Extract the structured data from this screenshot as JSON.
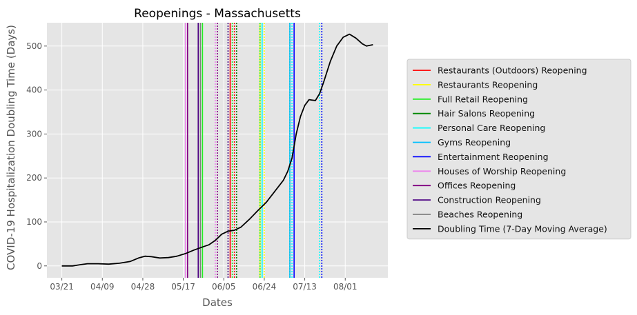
{
  "chart_data": {
    "type": "line",
    "title": "Reopenings - Massachusetts",
    "xlabel": "Dates",
    "ylabel": "COVID-19 Hospitalization Doubling Time (Days)",
    "x_tick_labels": [
      "03/21",
      "04/09",
      "04/28",
      "05/17",
      "06/05",
      "06/24",
      "07/13",
      "08/01"
    ],
    "y_ticks": [
      0,
      100,
      200,
      300,
      400,
      500
    ],
    "x_range": [
      "2020-03-14",
      "2020-08-21"
    ],
    "ylim": [
      -27,
      553
    ],
    "grid": true,
    "legend_position": "right",
    "series": [
      {
        "name": "Doubling Time (7-Day Moving Average)",
        "color": "#000000",
        "points": [
          [
            "2020-03-21",
            0
          ],
          [
            "2020-03-26",
            0
          ],
          [
            "2020-03-30",
            3
          ],
          [
            "2020-04-02",
            5
          ],
          [
            "2020-04-07",
            5
          ],
          [
            "2020-04-12",
            4
          ],
          [
            "2020-04-17",
            6
          ],
          [
            "2020-04-22",
            10
          ],
          [
            "2020-04-26",
            18
          ],
          [
            "2020-04-29",
            22
          ],
          [
            "2020-05-02",
            21
          ],
          [
            "2020-05-06",
            18
          ],
          [
            "2020-05-10",
            19
          ],
          [
            "2020-05-14",
            22
          ],
          [
            "2020-05-18",
            28
          ],
          [
            "2020-05-22",
            36
          ],
          [
            "2020-05-26",
            43
          ],
          [
            "2020-05-29",
            48
          ],
          [
            "2020-06-01",
            58
          ],
          [
            "2020-06-04",
            72
          ],
          [
            "2020-06-07",
            79
          ],
          [
            "2020-06-10",
            81
          ],
          [
            "2020-06-13",
            88
          ],
          [
            "2020-06-17",
            106
          ],
          [
            "2020-06-21",
            126
          ],
          [
            "2020-06-25",
            145
          ],
          [
            "2020-06-29",
            170
          ],
          [
            "2020-07-03",
            195
          ],
          [
            "2020-07-05",
            215
          ],
          [
            "2020-07-07",
            245
          ],
          [
            "2020-07-09",
            300
          ],
          [
            "2020-07-11",
            340
          ],
          [
            "2020-07-13",
            365
          ],
          [
            "2020-07-15",
            378
          ],
          [
            "2020-07-18",
            376
          ],
          [
            "2020-07-20",
            392
          ],
          [
            "2020-07-22",
            420
          ],
          [
            "2020-07-25",
            465
          ],
          [
            "2020-07-28",
            500
          ],
          [
            "2020-07-31",
            520
          ],
          [
            "2020-08-03",
            527
          ],
          [
            "2020-08-06",
            518
          ],
          [
            "2020-08-09",
            505
          ],
          [
            "2020-08-11",
            500
          ],
          [
            "2020-08-14",
            503
          ]
        ]
      }
    ],
    "reopenings": [
      {
        "name": "Restaurants (Outdoors) Reopening",
        "color": "#ff0000",
        "lines": [
          {
            "date": "2020-06-08",
            "style": "solid"
          },
          {
            "date": "2020-06-10",
            "style": "dotted"
          }
        ]
      },
      {
        "name": "Restaurants Reopening",
        "color": "#ffff00",
        "lines": [
          {
            "date": "2020-06-22",
            "style": "solid"
          },
          {
            "date": "2020-06-24",
            "style": "dotted"
          }
        ]
      },
      {
        "name": "Full Retail Reopening",
        "color": "#22ee22",
        "lines": [
          {
            "date": "2020-05-26",
            "style": "solid"
          },
          {
            "date": "2020-06-09",
            "style": "dotted"
          },
          {
            "date": "2020-06-22",
            "style": "dotted"
          },
          {
            "date": "2020-07-06",
            "style": "dotted"
          }
        ]
      },
      {
        "name": "Hair Salons Reopening",
        "color": "#008800",
        "lines": [
          {
            "date": "2020-05-25",
            "style": "solid"
          },
          {
            "date": "2020-06-11",
            "style": "dotted"
          }
        ]
      },
      {
        "name": "Personal Care Reopening",
        "color": "#00ffff",
        "lines": [
          {
            "date": "2020-06-23",
            "style": "solid"
          },
          {
            "date": "2020-07-07",
            "style": "dotted"
          },
          {
            "date": "2020-07-20",
            "style": "dotted"
          }
        ]
      },
      {
        "name": "Gyms Reopening",
        "color": "#00bfff",
        "lines": [
          {
            "date": "2020-07-06",
            "style": "solid"
          },
          {
            "date": "2020-07-21",
            "style": "dotted"
          }
        ]
      },
      {
        "name": "Entertainment Reopening",
        "color": "#0000ff",
        "lines": [
          {
            "date": "2020-07-08",
            "style": "solid"
          },
          {
            "date": "2020-07-21",
            "style": "dotted"
          }
        ]
      },
      {
        "name": "Houses of Worship Reopening",
        "color": "#ee82ee",
        "lines": [
          {
            "date": "2020-05-18",
            "style": "solid"
          },
          {
            "date": "2020-06-01",
            "style": "dotted"
          }
        ]
      },
      {
        "name": "Offices Reopening",
        "color": "#800080",
        "lines": [
          {
            "date": "2020-05-19",
            "style": "solid"
          },
          {
            "date": "2020-06-02",
            "style": "dotted"
          }
        ]
      },
      {
        "name": "Construction Reopening",
        "color": "#4b0082",
        "lines": [
          {
            "date": "2020-05-24",
            "style": "solid"
          },
          {
            "date": "2020-06-07",
            "style": "dotted"
          }
        ]
      },
      {
        "name": "Beaches Reopening",
        "color": "#808080",
        "lines": [
          {
            "date": "2020-05-25",
            "style": "solid"
          }
        ]
      }
    ],
    "legend": [
      {
        "label": "Restaurants (Outdoors) Reopening",
        "color": "#ff0000"
      },
      {
        "label": "Restaurants Reopening",
        "color": "#ffff00"
      },
      {
        "label": "Full Retail Reopening",
        "color": "#22ee22"
      },
      {
        "label": "Hair Salons Reopening",
        "color": "#008800"
      },
      {
        "label": "Personal Care Reopening",
        "color": "#00ffff"
      },
      {
        "label": "Gyms Reopening",
        "color": "#00bfff"
      },
      {
        "label": "Entertainment Reopening",
        "color": "#0000ff"
      },
      {
        "label": "Houses of Worship Reopening",
        "color": "#ee82ee"
      },
      {
        "label": "Offices Reopening",
        "color": "#800080"
      },
      {
        "label": "Construction Reopening",
        "color": "#4b0082"
      },
      {
        "label": "Beaches Reopening",
        "color": "#808080"
      },
      {
        "label": "Doubling Time (7-Day Moving Average)",
        "color": "#000000"
      }
    ],
    "colors": {
      "plot_background": "#e5e5e5",
      "grid": "#ffffff",
      "text": "#555555"
    }
  }
}
